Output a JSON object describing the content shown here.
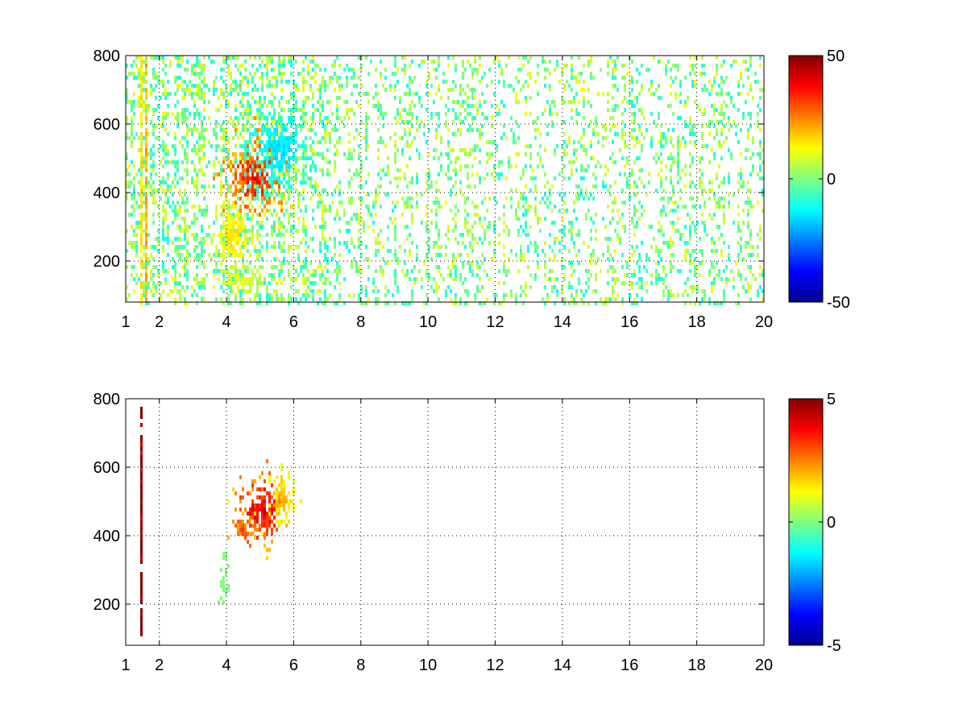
{
  "chart_data": [
    {
      "type": "heatmap",
      "title": "",
      "xlabel": "",
      "ylabel": "",
      "xlim": [
        1,
        20
      ],
      "ylim": [
        80,
        800
      ],
      "xticks": [
        1,
        2,
        4,
        6,
        8,
        10,
        12,
        14,
        16,
        18,
        20
      ],
      "yticks": [
        200,
        400,
        600,
        800
      ],
      "grid": true,
      "colormap": "jet",
      "clim": [
        -50,
        50
      ],
      "colorbar_ticks": [
        -50,
        0,
        50
      ],
      "colorbar": "right",
      "features": [
        {
          "kind": "vertical-line",
          "x": 1.4,
          "value": 15
        },
        {
          "kind": "vertical-line",
          "x": 1.6,
          "value": 20
        },
        {
          "kind": "cluster",
          "x": 4.8,
          "y": 450,
          "sx": 0.45,
          "sy": 60,
          "peak": 35
        },
        {
          "kind": "cluster",
          "x": 5.5,
          "y": 530,
          "sx": 0.5,
          "sy": 60,
          "peak": -15
        },
        {
          "kind": "cluster",
          "x": 4.2,
          "y": 280,
          "sx": 0.3,
          "sy": 50,
          "peak": 15
        },
        {
          "kind": "cluster",
          "x": 4.4,
          "y": 150,
          "sx": 0.3,
          "sy": 25,
          "peak": 10
        },
        {
          "kind": "noise",
          "x_range": [
            1,
            20
          ],
          "value_range": [
            -12,
            12
          ],
          "density": 0.22
        }
      ]
    },
    {
      "type": "heatmap",
      "title": "",
      "xlabel": "",
      "ylabel": "",
      "xlim": [
        1,
        20
      ],
      "ylim": [
        80,
        800
      ],
      "xticks": [
        1,
        2,
        4,
        6,
        8,
        10,
        12,
        14,
        16,
        18,
        20
      ],
      "yticks": [
        200,
        400,
        600,
        800
      ],
      "grid": true,
      "colormap": "jet",
      "clim": [
        -5,
        5
      ],
      "colorbar_ticks": [
        -5,
        0,
        5
      ],
      "colorbar": "right",
      "features": [
        {
          "kind": "vertical-line",
          "x": 1.42,
          "value": 5,
          "y_range": [
            100,
            780
          ]
        },
        {
          "kind": "cluster",
          "x": 5.0,
          "y": 480,
          "sx": 0.35,
          "sy": 50,
          "peak": 4
        },
        {
          "kind": "cluster",
          "x": 4.5,
          "y": 430,
          "sx": 0.25,
          "sy": 20,
          "peak": 3
        },
        {
          "kind": "cluster",
          "x": 5.6,
          "y": 520,
          "sx": 0.2,
          "sy": 40,
          "peak": 2
        },
        {
          "kind": "cluster",
          "x": 3.9,
          "y": 270,
          "sx": 0.08,
          "sy": 40,
          "peak": 0
        }
      ]
    }
  ]
}
